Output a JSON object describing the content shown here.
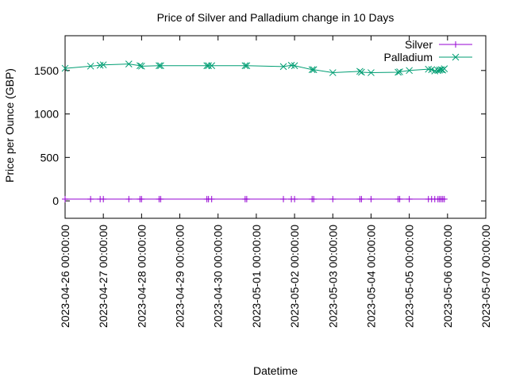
{
  "chart_data": {
    "type": "line",
    "title": "Price of Silver and Palladium change in 10 Days",
    "xlabel": "Datetime",
    "ylabel": "Price per Ounce (GBP)",
    "xlim": [
      "2023-04-26 00:00:00",
      "2023-05-07 00:00:00"
    ],
    "ylim": [
      -200,
      1900
    ],
    "x_ticks": [
      "2023-04-26 00:00:00",
      "2023-04-27 00:00:00",
      "2023-04-28 00:00:00",
      "2023-04-29 00:00:00",
      "2023-04-30 00:00:00",
      "2023-05-01 00:00:00",
      "2023-05-02 00:00:00",
      "2023-05-03 00:00:00",
      "2023-05-04 00:00:00",
      "2023-05-05 00:00:00",
      "2023-05-06 00:00:00",
      "2023-05-07 00:00:00"
    ],
    "y_ticks": [
      0,
      500,
      1000,
      1500
    ],
    "grid": false,
    "legend_position": "top-right",
    "series": [
      {
        "name": "Silver",
        "color": "#9400d3",
        "marker": "plus",
        "points": [
          [
            "2023-04-26 00:00:00",
            20
          ],
          [
            "2023-04-26 16:00:00",
            20
          ],
          [
            "2023-04-26 22:00:00",
            20
          ],
          [
            "2023-04-27 00:00:00",
            20
          ],
          [
            "2023-04-27 16:00:00",
            20
          ],
          [
            "2023-04-27 23:00:00",
            20
          ],
          [
            "2023-04-28 00:00:00",
            20
          ],
          [
            "2023-04-28 11:00:00",
            20
          ],
          [
            "2023-04-28 12:00:00",
            20
          ],
          [
            "2023-04-29 17:00:00",
            20
          ],
          [
            "2023-04-29 18:00:00",
            20
          ],
          [
            "2023-04-29 20:00:00",
            20
          ],
          [
            "2023-04-30 17:00:00",
            20
          ],
          [
            "2023-04-30 18:00:00",
            20
          ],
          [
            "2023-05-01 17:00:00",
            20
          ],
          [
            "2023-05-01 22:00:00",
            20
          ],
          [
            "2023-05-02 00:00:00",
            20
          ],
          [
            "2023-05-02 11:00:00",
            20
          ],
          [
            "2023-05-02 12:00:00",
            20
          ],
          [
            "2023-05-03 00:00:00",
            20
          ],
          [
            "2023-05-03 17:00:00",
            20
          ],
          [
            "2023-05-03 18:00:00",
            20
          ],
          [
            "2023-05-04 00:00:00",
            20
          ],
          [
            "2023-05-04 17:00:00",
            20
          ],
          [
            "2023-05-04 18:00:00",
            20
          ],
          [
            "2023-05-05 00:00:00",
            20
          ],
          [
            "2023-05-05 12:00:00",
            20
          ],
          [
            "2023-05-05 14:00:00",
            20
          ],
          [
            "2023-05-05 16:00:00",
            20
          ],
          [
            "2023-05-05 18:00:00",
            20
          ],
          [
            "2023-05-05 19:00:00",
            20
          ],
          [
            "2023-05-05 20:00:00",
            20
          ],
          [
            "2023-05-05 21:00:00",
            20
          ],
          [
            "2023-05-05 22:00:00",
            20
          ]
        ]
      },
      {
        "name": "Palladium",
        "color": "#009e73",
        "marker": "cross",
        "points": [
          [
            "2023-04-26 00:00:00",
            1525
          ],
          [
            "2023-04-26 16:00:00",
            1550
          ],
          [
            "2023-04-26 22:00:00",
            1560
          ],
          [
            "2023-04-27 00:00:00",
            1565
          ],
          [
            "2023-04-27 16:00:00",
            1575
          ],
          [
            "2023-04-27 23:00:00",
            1555
          ],
          [
            "2023-04-28 00:00:00",
            1550
          ],
          [
            "2023-04-28 11:00:00",
            1555
          ],
          [
            "2023-04-28 12:00:00",
            1555
          ],
          [
            "2023-04-29 17:00:00",
            1555
          ],
          [
            "2023-04-29 18:00:00",
            1555
          ],
          [
            "2023-04-29 20:00:00",
            1555
          ],
          [
            "2023-04-30 17:00:00",
            1555
          ],
          [
            "2023-04-30 18:00:00",
            1555
          ],
          [
            "2023-05-01 17:00:00",
            1545
          ],
          [
            "2023-05-01 22:00:00",
            1560
          ],
          [
            "2023-05-02 00:00:00",
            1555
          ],
          [
            "2023-05-02 11:00:00",
            1510
          ],
          [
            "2023-05-02 12:00:00",
            1510
          ],
          [
            "2023-05-03 00:00:00",
            1475
          ],
          [
            "2023-05-03 17:00:00",
            1490
          ],
          [
            "2023-05-03 18:00:00",
            1480
          ],
          [
            "2023-05-04 00:00:00",
            1475
          ],
          [
            "2023-05-04 17:00:00",
            1480
          ],
          [
            "2023-05-04 18:00:00",
            1485
          ],
          [
            "2023-05-05 00:00:00",
            1500
          ],
          [
            "2023-05-05 12:00:00",
            1515
          ],
          [
            "2023-05-05 14:00:00",
            1510
          ],
          [
            "2023-05-05 16:00:00",
            1495
          ],
          [
            "2023-05-05 18:00:00",
            1500
          ],
          [
            "2023-05-05 19:00:00",
            1505
          ],
          [
            "2023-05-05 20:00:00",
            1510
          ],
          [
            "2023-05-05 21:00:00",
            1505
          ],
          [
            "2023-05-05 22:00:00",
            1520
          ]
        ]
      }
    ]
  }
}
